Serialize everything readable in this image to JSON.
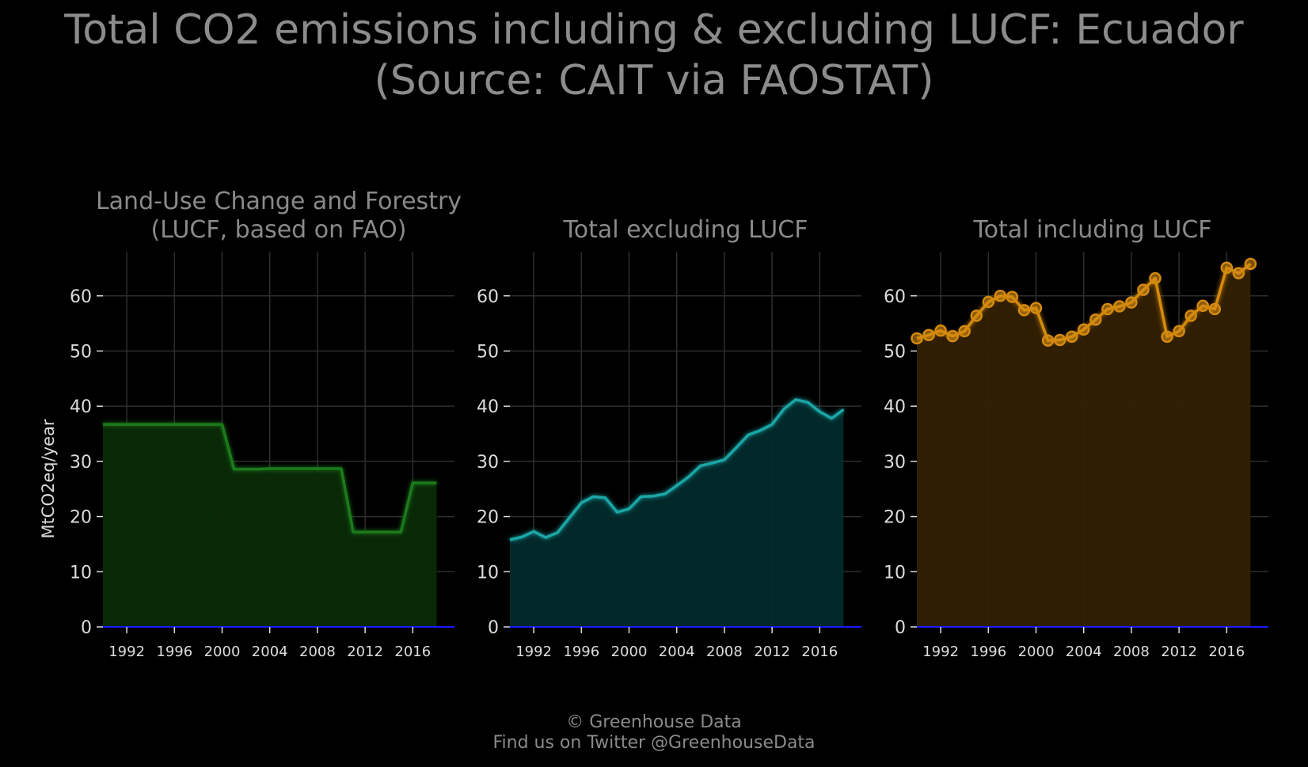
{
  "title_line1": "Total CO2 emissions including & excluding LUCF: Ecuador",
  "title_line2": "(Source: CAIT via FAOSTAT)",
  "footer_line1": "© Greenhouse Data",
  "footer_line2": "Find us on Twitter @GreenhouseData",
  "colors": {
    "background": "#000000",
    "grid": "#2e2e2e",
    "text": "#8a8a8a",
    "tick_text": "#dcdcdc",
    "zero_line": "#1a1aff"
  },
  "chart_data": [
    {
      "type": "area",
      "title_lines": [
        "Land-Use Change and Forestry",
        "(LUCF, based on FAO)"
      ],
      "ylabel": "MtCO2eq/year",
      "color": "#1e7a1e",
      "fill": "#0a2a06",
      "markers": false,
      "x": [
        1990,
        1991,
        1992,
        1993,
        1994,
        1995,
        1996,
        1997,
        1998,
        1999,
        2000,
        2001,
        2002,
        2003,
        2004,
        2005,
        2006,
        2007,
        2008,
        2009,
        2010,
        2011,
        2012,
        2013,
        2014,
        2015,
        2016,
        2017,
        2018
      ],
      "values": [
        36.7,
        36.7,
        36.7,
        36.7,
        36.7,
        36.7,
        36.7,
        36.7,
        36.7,
        36.7,
        36.7,
        28.6,
        28.6,
        28.6,
        28.7,
        28.7,
        28.7,
        28.7,
        28.7,
        28.7,
        28.7,
        17.2,
        17.2,
        17.2,
        17.2,
        17.2,
        26.1,
        26.1,
        26.1
      ],
      "xlim": [
        1990,
        2019.5
      ],
      "ylim": [
        0,
        68
      ],
      "xticks": [
        1992,
        1996,
        2000,
        2004,
        2008,
        2012,
        2016
      ],
      "yticks": [
        0,
        10,
        20,
        30,
        40,
        50,
        60
      ]
    },
    {
      "type": "area",
      "title_lines": [
        "Total excluding LUCF"
      ],
      "ylabel": "",
      "color": "#1aa6a6",
      "fill": "#022a2c",
      "markers": false,
      "x": [
        1990,
        1991,
        1992,
        1993,
        1994,
        1995,
        1996,
        1997,
        1998,
        1999,
        2000,
        2001,
        2002,
        2003,
        2004,
        2005,
        2006,
        2007,
        2008,
        2009,
        2010,
        2011,
        2012,
        2013,
        2014,
        2015,
        2016,
        2017,
        2018
      ],
      "values": [
        15.8,
        16.3,
        17.3,
        16.2,
        17.1,
        19.8,
        22.5,
        23.6,
        23.4,
        20.8,
        21.4,
        23.6,
        23.7,
        24.1,
        25.6,
        27.2,
        29.2,
        29.7,
        30.3,
        32.5,
        34.8,
        35.6,
        36.7,
        39.5,
        41.2,
        40.7,
        39.0,
        37.8,
        39.4
      ],
      "xlim": [
        1990,
        2019.5
      ],
      "ylim": [
        0,
        68
      ],
      "xticks": [
        1992,
        1996,
        2000,
        2004,
        2008,
        2012,
        2016
      ],
      "yticks": [
        0,
        10,
        20,
        30,
        40,
        50,
        60
      ]
    },
    {
      "type": "area",
      "title_lines": [
        "Total including LUCF"
      ],
      "ylabel": "",
      "color": "#d48a10",
      "fill": "#332003",
      "markers": true,
      "x": [
        1990,
        1991,
        1992,
        1993,
        1994,
        1995,
        1996,
        1997,
        1998,
        1999,
        2000,
        2001,
        2002,
        2003,
        2004,
        2005,
        2006,
        2007,
        2008,
        2009,
        2010,
        2011,
        2012,
        2013,
        2014,
        2015,
        2016,
        2017,
        2018
      ],
      "values": [
        52.3,
        52.9,
        53.7,
        52.7,
        53.6,
        56.4,
        58.9,
        60.0,
        59.8,
        57.4,
        57.8,
        51.9,
        52.0,
        52.6,
        53.9,
        55.7,
        57.6,
        58.1,
        58.8,
        61.1,
        63.2,
        52.6,
        53.6,
        56.4,
        58.2,
        57.6,
        65.1,
        64.1,
        65.8
      ],
      "xlim": [
        1990,
        2019.5
      ],
      "ylim": [
        0,
        68
      ],
      "xticks": [
        1992,
        1996,
        2000,
        2004,
        2008,
        2012,
        2016
      ],
      "yticks": [
        0,
        10,
        20,
        30,
        40,
        50,
        60
      ]
    }
  ]
}
